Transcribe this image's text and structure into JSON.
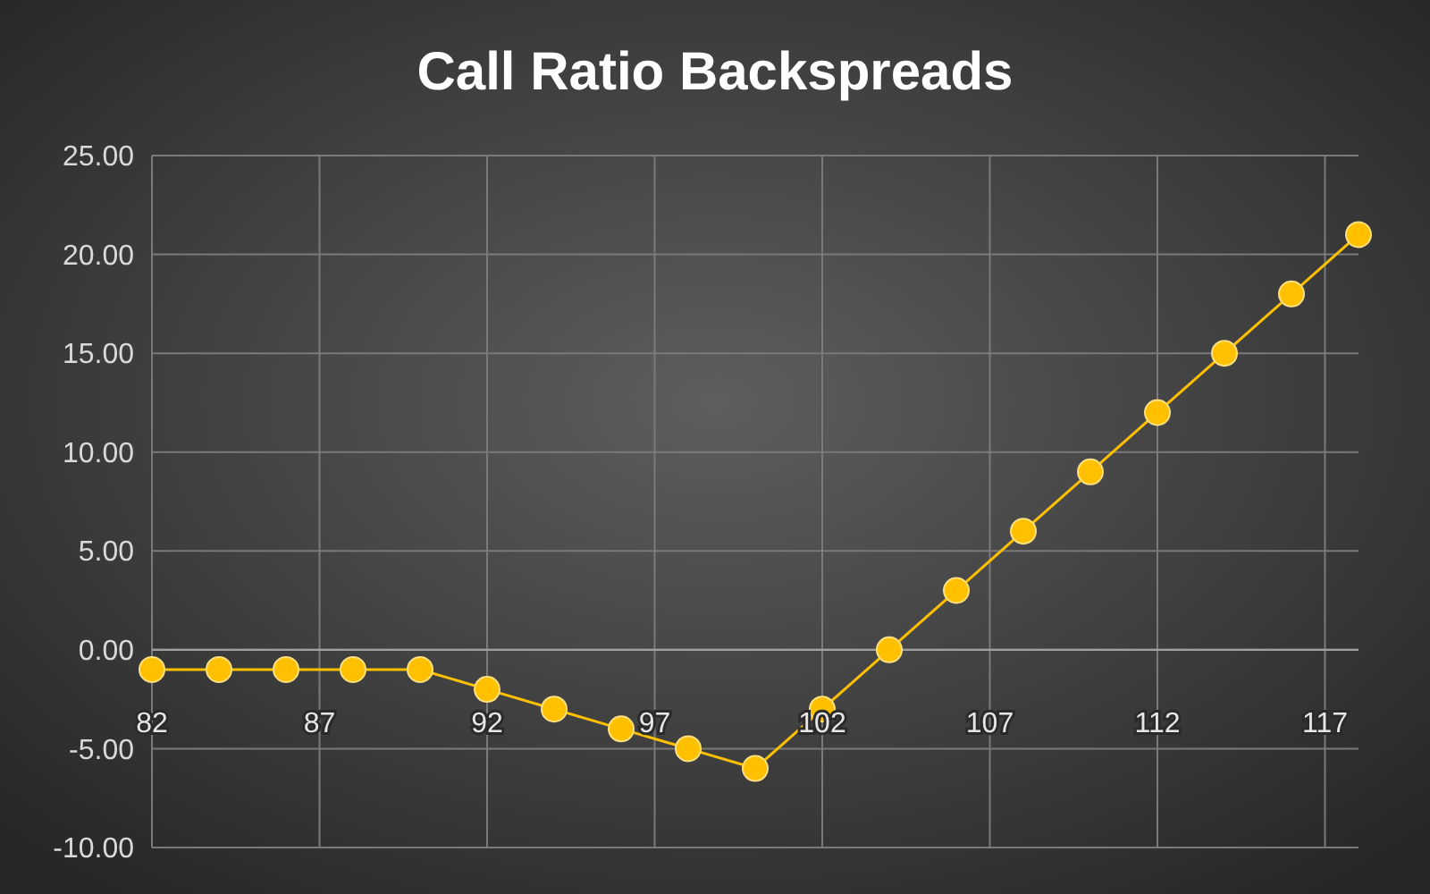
{
  "chart_data": {
    "type": "line",
    "title": "Call Ratio Backspreads",
    "x": [
      82,
      84,
      86,
      88,
      90,
      92,
      94,
      96,
      98,
      100,
      102,
      104,
      106,
      108,
      110,
      112,
      114,
      116,
      118
    ],
    "series": [
      {
        "color": "#ffc000",
        "values": [
          -1,
          -1,
          -1,
          -1,
          -1,
          -2,
          -3,
          -4,
          -5,
          -6,
          -3,
          0,
          3,
          6,
          9,
          12,
          15,
          18,
          21
        ]
      }
    ],
    "xlim": [
      82,
      118
    ],
    "xticks": [
      82,
      87,
      92,
      97,
      102,
      107,
      112,
      117
    ],
    "ylim": [
      -10,
      25
    ],
    "yticks": [
      {
        "value": -10,
        "label": "-10.00"
      },
      {
        "value": -5,
        "label": "-5.00"
      },
      {
        "value": 0,
        "label": "0.00"
      },
      {
        "value": 5,
        "label": "5.00"
      },
      {
        "value": 10,
        "label": "10.00"
      },
      {
        "value": 15,
        "label": "15.00"
      },
      {
        "value": 20,
        "label": "20.00"
      },
      {
        "value": 25,
        "label": "25.00"
      }
    ],
    "grid": true,
    "marker": "circle",
    "line_style": "solid"
  }
}
